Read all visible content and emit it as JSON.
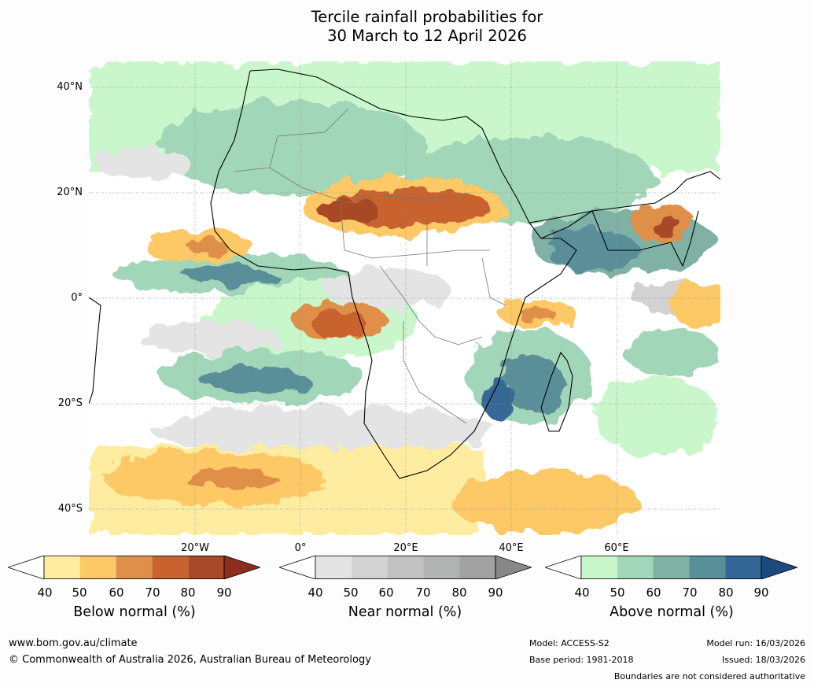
{
  "title_line1": "Tercile rainfall probabilities for",
  "title_line2": "30 March to 12 April 2026",
  "lat_labels": [
    "40°N",
    "20°N",
    "0°",
    "20°S",
    "40°S"
  ],
  "lon_labels": [
    "20°W",
    "0°",
    "20°E",
    "40°E",
    "60°E"
  ],
  "colorbars": [
    {
      "name": "below",
      "title": "Below normal (%)",
      "ticks": [
        "40",
        "50",
        "60",
        "70",
        "80",
        "90"
      ],
      "colors": [
        "#ffffff",
        "#feeda0",
        "#fdc866",
        "#e08f48",
        "#c8622f",
        "#a84a28",
        "#8b2e1e"
      ]
    },
    {
      "name": "near",
      "title": "Near normal (%)",
      "ticks": [
        "40",
        "50",
        "60",
        "70",
        "80",
        "90"
      ],
      "colors": [
        "#ffffff",
        "#e4e4e4",
        "#d2d2d2",
        "#c1c1c1",
        "#b1b2b2",
        "#a2a2a2",
        "#888888"
      ]
    },
    {
      "name": "above",
      "title": "Above normal (%)",
      "ticks": [
        "40",
        "50",
        "60",
        "70",
        "80",
        "90"
      ],
      "colors": [
        "#ffffff",
        "#c9f7cb",
        "#a2d6b8",
        "#7fb2a5",
        "#5a8f9a",
        "#346795",
        "#1c4a7e"
      ]
    }
  ],
  "footer": {
    "url": "www.bom.gov.au/climate",
    "copyright": "© Commonwealth of Australia 2026, Australian Bureau of Meteorology",
    "model": "Model: ACCESS-S2",
    "base_period": "Base period: 1981-2018",
    "model_run": "Model run: 16/03/2026",
    "issued": "Issued: 18/03/2026",
    "disclaimer": "Boundaries are not considered authoritative"
  }
}
